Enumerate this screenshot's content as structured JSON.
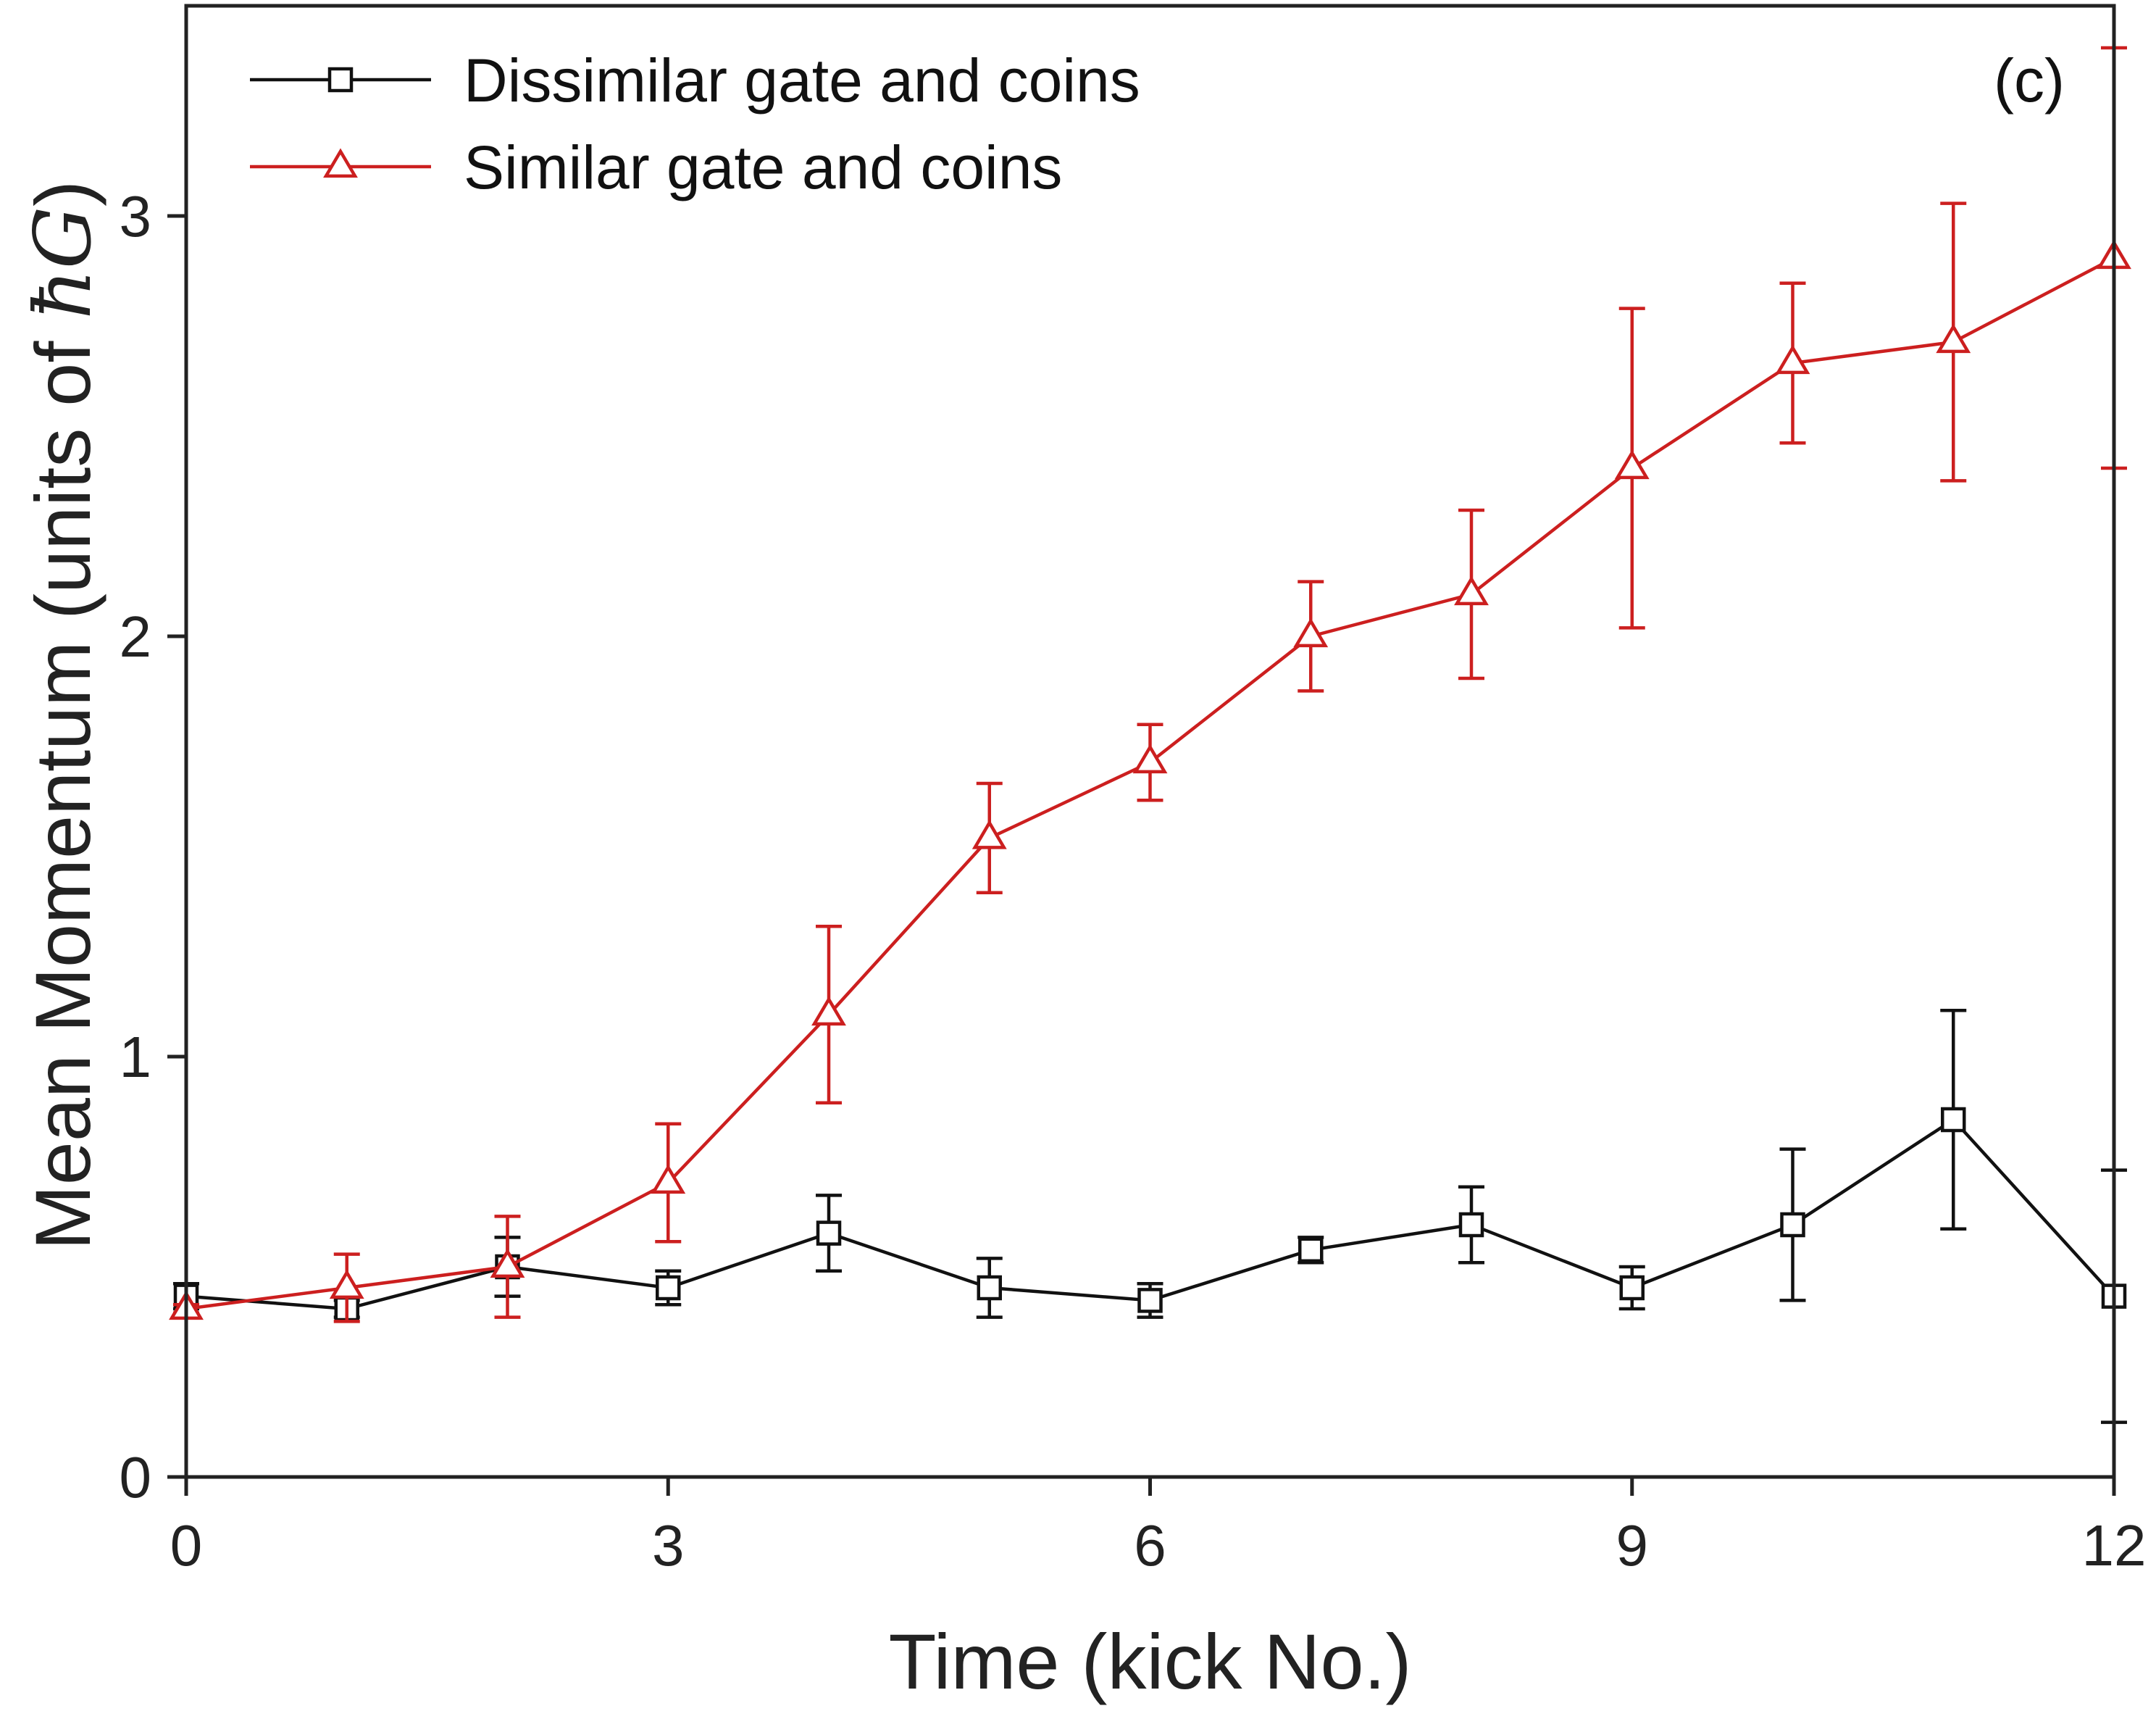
{
  "chart_data": {
    "type": "line",
    "title": "",
    "panel_label": "(c)",
    "xlabel": "Time (kick No.)",
    "ylabel_prefix": "Mean Momentum (units of ",
    "ylabel_symbol": "ħG",
    "ylabel_suffix": ")",
    "xlim": [
      0,
      12
    ],
    "ylim": [
      0,
      3.5
    ],
    "xticks": [
      0,
      3,
      6,
      9,
      12
    ],
    "xtick_labels": [
      "0",
      "3",
      "6",
      "9",
      "12"
    ],
    "yticks": [
      0,
      1,
      2,
      3
    ],
    "ytick_labels": [
      "0",
      "1",
      "2",
      "3"
    ],
    "grid": false,
    "legend_position": "top-left",
    "x": [
      0,
      1,
      2,
      3,
      4,
      5,
      6,
      7,
      8,
      9,
      10,
      11,
      12
    ],
    "series": [
      {
        "name": "Dissimilar gate and coins",
        "color": "#111111",
        "marker": "square",
        "values": [
          0.43,
          0.4,
          0.5,
          0.45,
          0.58,
          0.45,
          0.42,
          0.54,
          0.6,
          0.45,
          0.6,
          0.85,
          0.43
        ],
        "errors": [
          0.03,
          0.02,
          0.07,
          0.04,
          0.09,
          0.07,
          0.04,
          0.03,
          0.09,
          0.05,
          0.18,
          0.26,
          0.3
        ]
      },
      {
        "name": "Similar gate and coins",
        "color": "#cc1f1f",
        "marker": "triangle",
        "values": [
          0.4,
          0.45,
          0.5,
          0.7,
          1.1,
          1.52,
          1.7,
          2.0,
          2.1,
          2.4,
          2.65,
          2.7,
          2.9
        ],
        "errors": [
          0.01,
          0.08,
          0.12,
          0.14,
          0.21,
          0.13,
          0.09,
          0.13,
          0.2,
          0.38,
          0.19,
          0.33,
          0.5
        ]
      }
    ]
  }
}
